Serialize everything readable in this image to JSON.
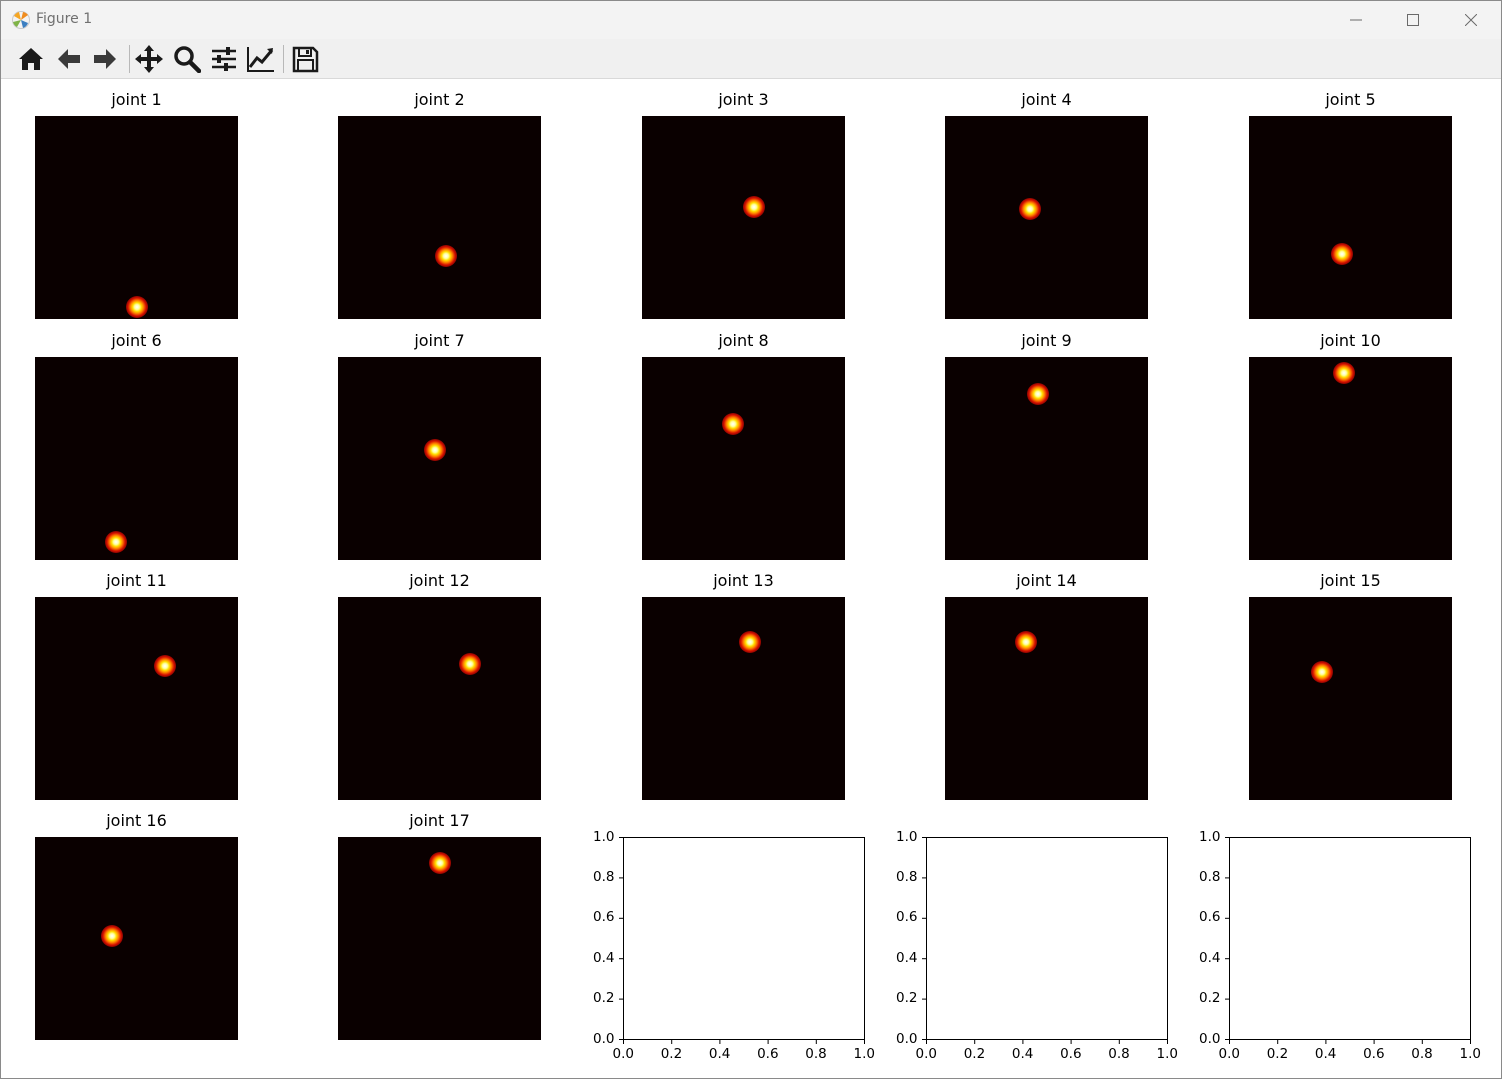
{
  "window": {
    "title": "Figure 1",
    "controls": [
      "minimize-icon",
      "maximize-icon",
      "close-icon"
    ]
  },
  "toolbar": {
    "buttons": [
      {
        "name": "home",
        "icon": "home-icon"
      },
      {
        "name": "back",
        "icon": "arrow-left-icon"
      },
      {
        "name": "forward",
        "icon": "arrow-right-icon"
      },
      {
        "name": "pan",
        "icon": "move-icon"
      },
      {
        "name": "zoom",
        "icon": "magnifier-icon"
      },
      {
        "name": "subplots",
        "icon": "sliders-icon"
      },
      {
        "name": "customize",
        "icon": "line-chart-icon"
      },
      {
        "name": "save",
        "icon": "floppy-disk-icon"
      }
    ]
  },
  "chart_data": {
    "type": "heatmap",
    "colormap": "hot",
    "heatmaps": [
      {
        "title": "joint 1",
        "peak": {
          "x": 0.5,
          "y": 0.94
        }
      },
      {
        "title": "joint 2",
        "peak": {
          "x": 0.53,
          "y": 0.69
        }
      },
      {
        "title": "joint 3",
        "peak": {
          "x": 0.55,
          "y": 0.45
        }
      },
      {
        "title": "joint 4",
        "peak": {
          "x": 0.42,
          "y": 0.46
        }
      },
      {
        "title": "joint 5",
        "peak": {
          "x": 0.46,
          "y": 0.68
        }
      },
      {
        "title": "joint 6",
        "peak": {
          "x": 0.4,
          "y": 0.91
        }
      },
      {
        "title": "joint 7",
        "peak": {
          "x": 0.48,
          "y": 0.46
        }
      },
      {
        "title": "joint 8",
        "peak": {
          "x": 0.45,
          "y": 0.33
        }
      },
      {
        "title": "joint 9",
        "peak": {
          "x": 0.46,
          "y": 0.18
        }
      },
      {
        "title": "joint 10",
        "peak": {
          "x": 0.47,
          "y": 0.08
        }
      },
      {
        "title": "joint 11",
        "peak": {
          "x": 0.64,
          "y": 0.34
        }
      },
      {
        "title": "joint 12",
        "peak": {
          "x": 0.65,
          "y": 0.33
        }
      },
      {
        "title": "joint 13",
        "peak": {
          "x": 0.53,
          "y": 0.22
        }
      },
      {
        "title": "joint 14",
        "peak": {
          "x": 0.4,
          "y": 0.22
        }
      },
      {
        "title": "joint 15",
        "peak": {
          "x": 0.36,
          "y": 0.37
        }
      },
      {
        "title": "joint 16",
        "peak": {
          "x": 0.38,
          "y": 0.49
        }
      },
      {
        "title": "joint 17",
        "peak": {
          "x": 0.5,
          "y": 0.13
        }
      }
    ],
    "empty_axes": {
      "count": 3,
      "xlim": [
        0.0,
        1.0
      ],
      "ylim": [
        0.0,
        1.0
      ],
      "xticks": [
        "0.0",
        "0.2",
        "0.4",
        "0.6",
        "0.8",
        "1.0"
      ],
      "yticks": [
        "0.0",
        "0.2",
        "0.4",
        "0.6",
        "0.8",
        "1.0"
      ]
    }
  }
}
